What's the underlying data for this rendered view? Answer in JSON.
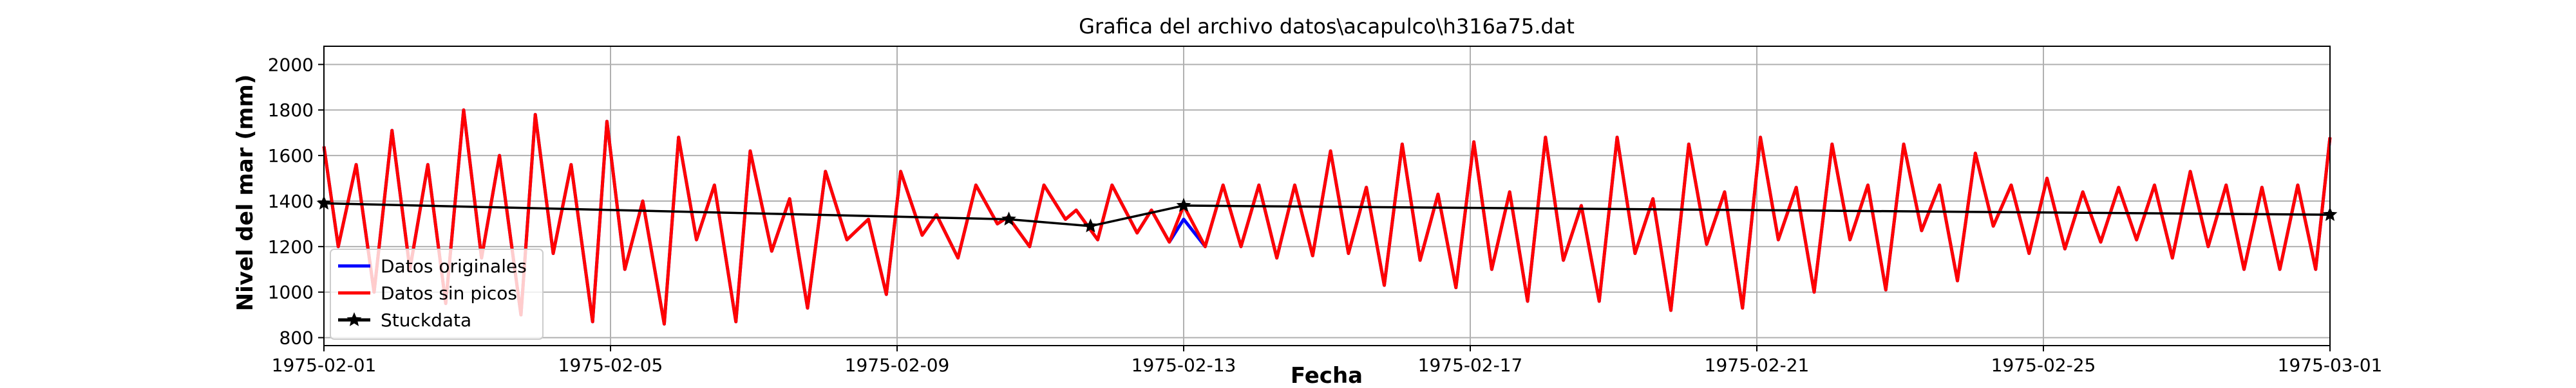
{
  "chart_data": {
    "type": "line",
    "title": "Grafica del archivo datos\\acapulco\\h316a75.dat",
    "x_label": "Fecha",
    "y_label": "Nivel del mar (mm)",
    "xlim": [
      0,
      28
    ],
    "ylim": [
      765,
      2080
    ],
    "xticks": [
      {
        "value": 0,
        "label": "1975-02-01"
      },
      {
        "value": 4,
        "label": "1975-02-05"
      },
      {
        "value": 8,
        "label": "1975-02-09"
      },
      {
        "value": 12,
        "label": "1975-02-13"
      },
      {
        "value": 16,
        "label": "1975-02-17"
      },
      {
        "value": 20,
        "label": "1975-02-21"
      },
      {
        "value": 24,
        "label": "1975-02-25"
      },
      {
        "value": 28,
        "label": "1975-03-01"
      }
    ],
    "yticks": [
      800,
      1000,
      1200,
      1400,
      1600,
      1800,
      2000
    ],
    "grid": true,
    "legend": "lower left",
    "x": [
      0,
      0.2,
      0.45,
      0.7,
      0.95,
      1.2,
      1.45,
      1.7,
      1.95,
      2.2,
      2.45,
      2.75,
      2.95,
      3.2,
      3.45,
      3.75,
      3.95,
      4.2,
      4.45,
      4.75,
      4.95,
      5.2,
      5.45,
      5.75,
      5.95,
      6.25,
      6.5,
      6.75,
      7.0,
      7.3,
      7.6,
      7.85,
      8.05,
      8.35,
      8.55,
      8.85,
      9.1,
      9.4,
      9.55,
      9.85,
      10.05,
      10.35,
      10.5,
      10.8,
      11.0,
      11.35,
      11.55,
      11.8,
      12.0,
      12.3,
      12.55,
      12.8,
      13.05,
      13.3,
      13.55,
      13.8,
      14.05,
      14.3,
      14.55,
      14.8,
      15.05,
      15.3,
      15.55,
      15.8,
      16.05,
      16.3,
      16.55,
      16.8,
      17.05,
      17.3,
      17.55,
      17.8,
      18.05,
      18.3,
      18.55,
      18.8,
      19.05,
      19.3,
      19.55,
      19.8,
      20.05,
      20.3,
      20.55,
      20.8,
      21.05,
      21.3,
      21.55,
      21.8,
      22.05,
      22.3,
      22.55,
      22.8,
      23.05,
      23.3,
      23.55,
      23.8,
      24.05,
      24.3,
      24.55,
      24.8,
      25.05,
      25.3,
      25.55,
      25.8,
      26.05,
      26.3,
      26.55,
      26.8,
      27.05,
      27.3,
      27.55,
      27.8,
      28
    ],
    "series": [
      {
        "name": "Datos originales",
        "color": "#0000ff",
        "values": [
          1640,
          1200,
          1560,
          1000,
          1710,
          1100,
          1560,
          950,
          1800,
          1150,
          1600,
          900,
          1780,
          1170,
          1560,
          870,
          1750,
          1100,
          1400,
          860,
          1680,
          1230,
          1470,
          870,
          1620,
          1180,
          1410,
          930,
          1530,
          1230,
          1320,
          990,
          1530,
          1250,
          1340,
          1150,
          1470,
          1300,
          1330,
          1200,
          1470,
          1320,
          1360,
          1230,
          1470,
          1260,
          1360,
          1220,
          1320,
          1200,
          1470,
          1200,
          1470,
          1150,
          1470,
          1160,
          1620,
          1170,
          1460,
          1030,
          1650,
          1140,
          1430,
          1020,
          1660,
          1100,
          1440,
          960,
          1680,
          1140,
          1380,
          960,
          1680,
          1170,
          1410,
          920,
          1650,
          1210,
          1440,
          930,
          1680,
          1230,
          1460,
          1000,
          1650,
          1230,
          1470,
          1010,
          1650,
          1270,
          1470,
          1050,
          1610,
          1290,
          1470,
          1170,
          1500,
          1190,
          1440,
          1220,
          1460,
          1230,
          1470,
          1150,
          1530,
          1200,
          1470,
          1100,
          1460,
          1100,
          1470,
          1100,
          1680
        ]
      },
      {
        "name": "Datos sin picos",
        "color": "#ff0000",
        "values": [
          1640,
          1200,
          1560,
          1000,
          1710,
          1100,
          1560,
          950,
          1800,
          1150,
          1600,
          900,
          1780,
          1170,
          1560,
          870,
          1750,
          1100,
          1400,
          860,
          1680,
          1230,
          1470,
          870,
          1620,
          1180,
          1410,
          930,
          1530,
          1230,
          1320,
          990,
          1530,
          1250,
          1340,
          1150,
          1470,
          1300,
          1330,
          1200,
          1470,
          1320,
          1360,
          1230,
          1470,
          1260,
          1360,
          1220,
          1380,
          1200,
          1470,
          1200,
          1470,
          1150,
          1470,
          1160,
          1620,
          1170,
          1460,
          1030,
          1650,
          1140,
          1430,
          1020,
          1660,
          1100,
          1440,
          960,
          1680,
          1140,
          1380,
          960,
          1680,
          1170,
          1410,
          920,
          1650,
          1210,
          1440,
          930,
          1680,
          1230,
          1460,
          1000,
          1650,
          1230,
          1470,
          1010,
          1650,
          1270,
          1470,
          1050,
          1610,
          1290,
          1470,
          1170,
          1500,
          1190,
          1440,
          1220,
          1460,
          1230,
          1470,
          1150,
          1530,
          1200,
          1470,
          1100,
          1460,
          1100,
          1470,
          1100,
          1680
        ]
      },
      {
        "name": "Stuckdata",
        "color": "#000000",
        "x": [
          0,
          9.56,
          10.7,
          12,
          28
        ],
        "values": [
          1390,
          1320,
          1290,
          1380,
          1340
        ]
      }
    ]
  }
}
